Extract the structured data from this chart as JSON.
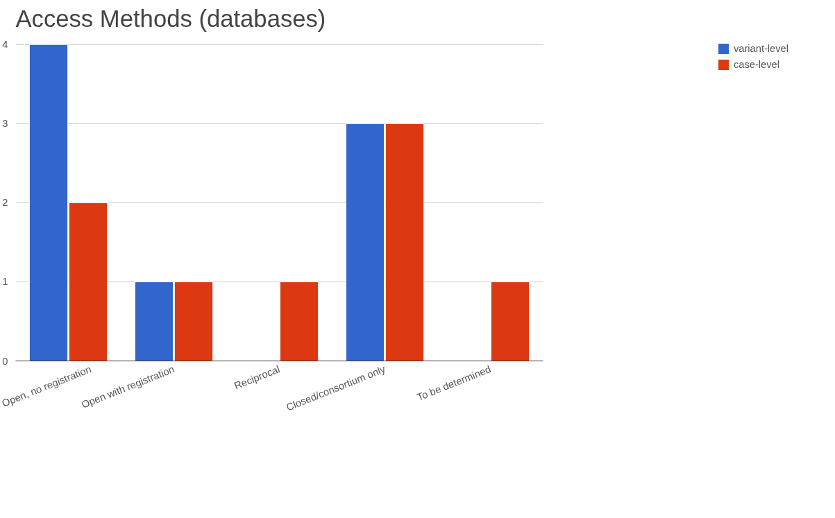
{
  "chart_data": {
    "type": "bar",
    "title": "Access Methods (databases)",
    "categories": [
      "Open, no registration",
      "Open with registration",
      "Reciprocal",
      "Closed/consortium only",
      "To be determined"
    ],
    "series": [
      {
        "name": "variant-level",
        "color": "#3366cc",
        "values": [
          4,
          1,
          null,
          3,
          null
        ]
      },
      {
        "name": "case-level",
        "color": "#dc3912",
        "values": [
          2,
          1,
          1,
          3,
          1
        ]
      }
    ],
    "ylim": [
      0,
      4
    ],
    "yticks": [
      0,
      1,
      2,
      3,
      4
    ],
    "grid": "y",
    "legend": "top right"
  }
}
